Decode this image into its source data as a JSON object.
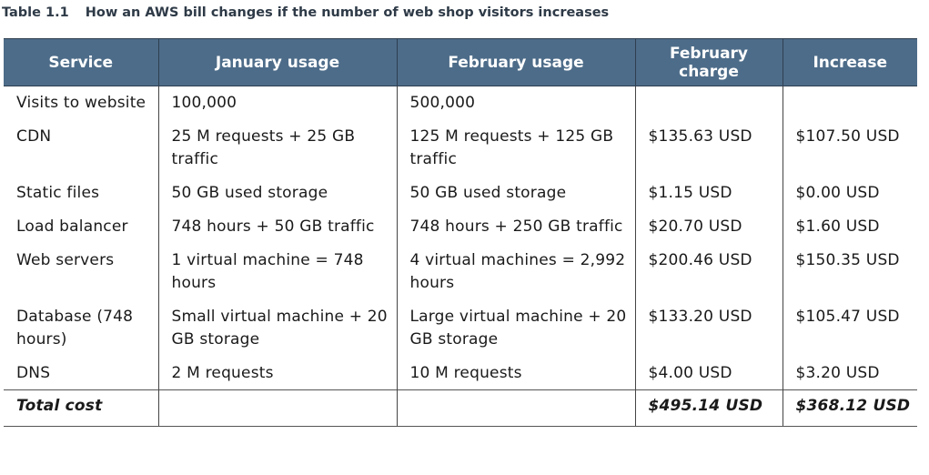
{
  "caption": {
    "number": "Table 1.1",
    "text": "How an AWS bill changes if the number of web shop visitors increases"
  },
  "headers": [
    "Service",
    "January usage",
    "February usage",
    "February charge",
    "Increase"
  ],
  "rows": [
    [
      "Visits to website",
      "100,000",
      "500,000",
      "",
      ""
    ],
    [
      "CDN",
      "25 M requests + 25 GB traffic",
      "125 M requests + 125 GB traffic",
      "$135.63 USD",
      "$107.50 USD"
    ],
    [
      "Static files",
      "50 GB used storage",
      "50 GB used storage",
      "$1.15 USD",
      "$0.00 USD"
    ],
    [
      "Load balancer",
      "748 hours + 50 GB traffic",
      "748 hours + 250 GB traffic",
      "$20.70 USD",
      "$1.60 USD"
    ],
    [
      "Web servers",
      "1 virtual machine = 748 hours",
      "4 virtual machines = 2,992 hours",
      "$200.46 USD",
      "$150.35 USD"
    ],
    [
      "Database (748 hours)",
      "Small virtual machine + 20 GB storage",
      "Large virtual machine + 20 GB storage",
      "$133.20 USD",
      "$105.47 USD"
    ],
    [
      "DNS",
      "2 M requests",
      "10 M requests",
      "$4.00 USD",
      "$3.20 USD"
    ]
  ],
  "total": [
    "Total cost",
    "",
    "",
    "$495.14 USD",
    "$368.12 USD"
  ]
}
